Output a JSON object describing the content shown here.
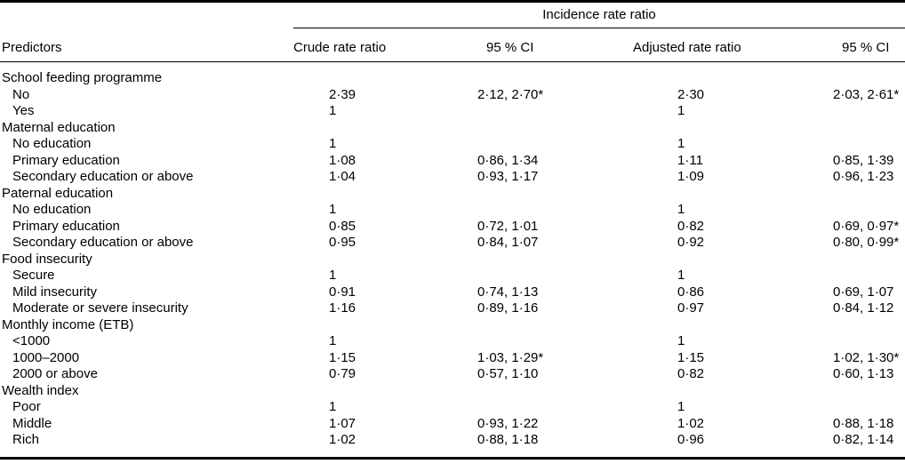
{
  "table": {
    "spanner": "Incidence rate ratio",
    "columns": [
      "Predictors",
      "Crude rate ratio",
      "95 % CI",
      "Adjusted rate ratio",
      "95 % CI"
    ],
    "rows": [
      {
        "type": "group",
        "label": "School feeding programme"
      },
      {
        "type": "item",
        "label": "No",
        "crude": "2·39",
        "ci1": "2·12, 2·70*",
        "adj": "2·30",
        "ci2": "2·03, 2·61*"
      },
      {
        "type": "item",
        "label": "Yes",
        "crude": "1",
        "ci1": "",
        "adj": "1",
        "ci2": ""
      },
      {
        "type": "group",
        "label": "Maternal education"
      },
      {
        "type": "item",
        "label": "No education",
        "crude": "1",
        "ci1": "",
        "adj": "1",
        "ci2": ""
      },
      {
        "type": "item",
        "label": "Primary education",
        "crude": "1·08",
        "ci1": "0·86, 1·34",
        "adj": "1·11",
        "ci2": "0·85, 1·39"
      },
      {
        "type": "item",
        "label": "Secondary education or above",
        "crude": "1·04",
        "ci1": "0·93, 1·17",
        "adj": "1·09",
        "ci2": "0·96, 1·23"
      },
      {
        "type": "group",
        "label": "Paternal education"
      },
      {
        "type": "item",
        "label": "No education",
        "crude": "1",
        "ci1": "",
        "adj": "1",
        "ci2": ""
      },
      {
        "type": "item",
        "label": "Primary education",
        "crude": "0·85",
        "ci1": "0·72, 1·01",
        "adj": "0·82",
        "ci2": "0·69, 0·97*"
      },
      {
        "type": "item",
        "label": "Secondary education or above",
        "crude": "0·95",
        "ci1": "0·84, 1·07",
        "adj": "0·92",
        "ci2": "0·80, 0·99*"
      },
      {
        "type": "group",
        "label": "Food insecurity"
      },
      {
        "type": "item",
        "label": "Secure",
        "crude": "1",
        "ci1": "",
        "adj": "1",
        "ci2": ""
      },
      {
        "type": "item",
        "label": "Mild insecurity",
        "crude": "0·91",
        "ci1": "0·74, 1·13",
        "adj": "0·86",
        "ci2": "0·69, 1·07"
      },
      {
        "type": "item",
        "label": "Moderate or severe insecurity",
        "crude": "1·16",
        "ci1": "0·89, 1·16",
        "adj": "0·97",
        "ci2": "0·84, 1·12"
      },
      {
        "type": "group",
        "label": "Monthly income (ETB)"
      },
      {
        "type": "item",
        "label": "<1000",
        "crude": "1",
        "ci1": "",
        "adj": "1",
        "ci2": ""
      },
      {
        "type": "item",
        "label": "1000–2000",
        "crude": "1·15",
        "ci1": "1·03, 1·29*",
        "adj": "1·15",
        "ci2": "1·02, 1·30*"
      },
      {
        "type": "item",
        "label": "2000 or above",
        "crude": "0·79",
        "ci1": "0·57, 1·10",
        "adj": "0·82",
        "ci2": "0·60, 1·13"
      },
      {
        "type": "group",
        "label": "Wealth index"
      },
      {
        "type": "item",
        "label": "Poor",
        "crude": "1",
        "ci1": "",
        "adj": "1",
        "ci2": ""
      },
      {
        "type": "item",
        "label": "Middle",
        "crude": "1·07",
        "ci1": "0·93, 1·22",
        "adj": "1·02",
        "ci2": "0·88, 1·18"
      },
      {
        "type": "item",
        "label": "Rich",
        "crude": "1·02",
        "ci1": "0·88, 1·18",
        "adj": "0·96",
        "ci2": "0·82, 1·14"
      }
    ],
    "colors": {
      "text": "#000000",
      "background": "#ffffff",
      "rule": "#000000"
    }
  }
}
